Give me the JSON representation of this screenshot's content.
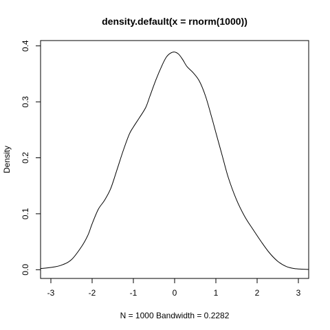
{
  "chart_data": {
    "type": "line",
    "title": "density.default(x = rnorm(1000))",
    "xlabel": "N = 1000   Bandwidth = 0.2282",
    "ylabel": "Density",
    "xlim": [
      -3.25,
      3.25
    ],
    "ylim": [
      -0.0156,
      0.4095
    ],
    "x_ticks": [
      -3,
      -2,
      -1,
      0,
      1,
      2,
      3
    ],
    "x_tick_labels": [
      "-3",
      "-2",
      "-1",
      "0",
      "1",
      "2",
      "3"
    ],
    "y_ticks": [
      0.0,
      0.1,
      0.2,
      0.3,
      0.4
    ],
    "y_tick_labels": [
      "0.0",
      "0.1",
      "0.2",
      "0.3",
      "0.4"
    ],
    "grid": false,
    "series": [
      {
        "x": [
          -3.25,
          -3.0,
          -2.75,
          -2.5,
          -2.25,
          -2.1,
          -2.0,
          -1.85,
          -1.7,
          -1.55,
          -1.4,
          -1.25,
          -1.1,
          -1.0,
          -0.85,
          -0.7,
          -0.6,
          -0.45,
          -0.3,
          -0.2,
          -0.1,
          0.0,
          0.1,
          0.2,
          0.3,
          0.45,
          0.6,
          0.75,
          0.9,
          1.0,
          1.15,
          1.3,
          1.5,
          1.7,
          1.9,
          2.1,
          2.3,
          2.5,
          2.7,
          2.9,
          3.1,
          3.25
        ],
        "y": [
          0.002,
          0.004,
          0.008,
          0.018,
          0.042,
          0.062,
          0.082,
          0.108,
          0.124,
          0.145,
          0.178,
          0.212,
          0.242,
          0.255,
          0.272,
          0.29,
          0.31,
          0.34,
          0.366,
          0.38,
          0.387,
          0.389,
          0.385,
          0.375,
          0.363,
          0.352,
          0.337,
          0.31,
          0.272,
          0.245,
          0.205,
          0.165,
          0.125,
          0.095,
          0.072,
          0.05,
          0.03,
          0.015,
          0.006,
          0.002,
          0.001,
          0.0005
        ]
      }
    ]
  }
}
